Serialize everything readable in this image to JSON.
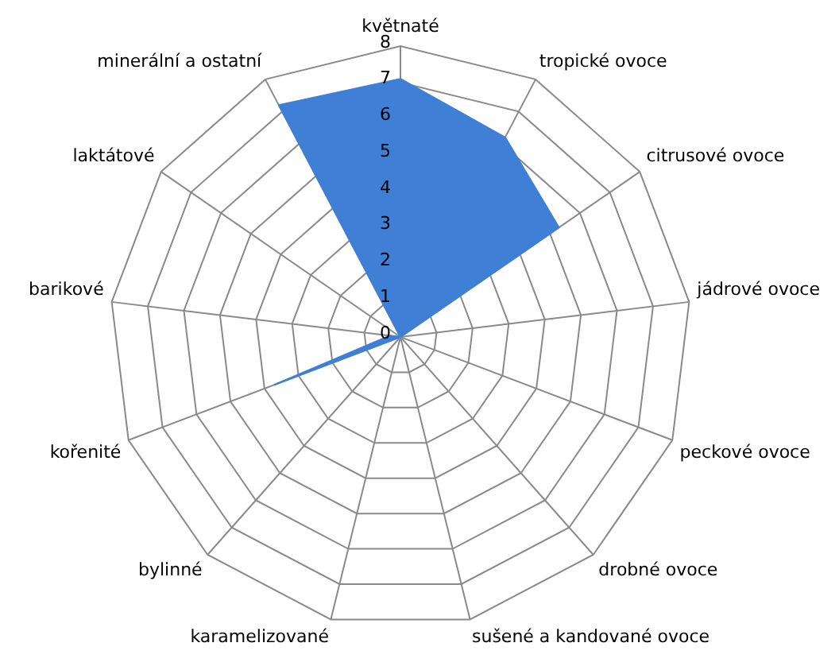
{
  "chart_data": {
    "type": "radar",
    "categories": [
      "květnaté",
      "tropické ovoce",
      "citrusové ovoce",
      "jádrové ovoce",
      "peckové ovoce",
      "drobné ovoce",
      "sušené a kandované ovoce",
      "karamelizované",
      "bylinné",
      "kořenité",
      "barikové",
      "laktátové",
      "minerální a ostatní"
    ],
    "series": [
      {
        "color": "#3f7fd6",
        "values": [
          7.1,
          6.2,
          5.3,
          0,
          0,
          0,
          0,
          0,
          0,
          3.7,
          0.3,
          0,
          7.2
        ]
      }
    ],
    "ylim": [
      0,
      8
    ],
    "yticks": [
      0,
      1,
      2,
      3,
      4,
      5,
      6,
      7,
      8
    ],
    "grid": true,
    "legend": false
  }
}
